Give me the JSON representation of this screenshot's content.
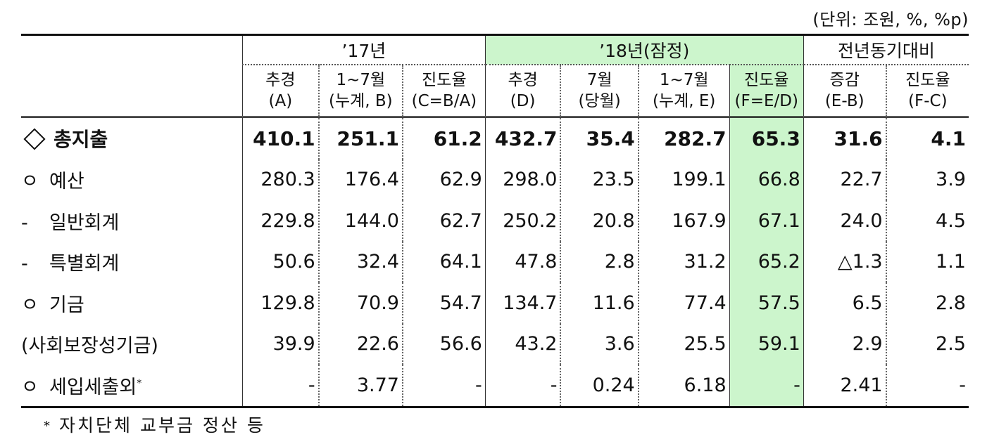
{
  "unit_note": "(단위: 조원, %, %p)",
  "header": {
    "groups": {
      "y17": "’17년",
      "y18": "’18년(잠정)",
      "yoy": "전년동기대비"
    },
    "columns": [
      {
        "line1": "추경",
        "line2": "(A)"
      },
      {
        "line1": "1~7월",
        "line2": "(누계, B)"
      },
      {
        "line1": "진도율",
        "line2": "(C=B/A)"
      },
      {
        "line1": "추경",
        "line2": "(D)"
      },
      {
        "line1": "7월",
        "line2": "(당월)"
      },
      {
        "line1": "1~7월",
        "line2": "(누계, E)"
      },
      {
        "line1": "진도율",
        "line2": "(F=E/D)"
      },
      {
        "line1": "증감",
        "line2": "(E-B)"
      },
      {
        "line1": "진도율",
        "line2": "(F-C)"
      }
    ]
  },
  "rows": [
    {
      "label": "총지출",
      "values": [
        "410.1",
        "251.1",
        "61.2",
        "432.7",
        "35.4",
        "282.7",
        "65.3",
        "31.6",
        "4.1"
      ]
    },
    {
      "marker": "ㅇ",
      "label": "예산",
      "values": [
        "280.3",
        "176.4",
        "62.9",
        "298.0",
        "23.5",
        "199.1",
        "66.8",
        "22.7",
        "3.9"
      ]
    },
    {
      "marker": "-",
      "label": "일반회계",
      "values": [
        "229.8",
        "144.0",
        "62.7",
        "250.2",
        "20.8",
        "167.9",
        "67.1",
        "24.0",
        "4.5"
      ]
    },
    {
      "marker": "-",
      "label": "특별회계",
      "values": [
        "50.6",
        "32.4",
        "64.1",
        "47.8",
        "2.8",
        "31.2",
        "65.2",
        "△1.3",
        "1.1"
      ]
    },
    {
      "marker": "ㅇ",
      "label": "기금",
      "values": [
        "129.8",
        "70.9",
        "54.7",
        "134.7",
        "11.6",
        "77.4",
        "57.5",
        "6.5",
        "2.8"
      ]
    },
    {
      "label": "(사회보장성기금)",
      "values": [
        "39.9",
        "22.6",
        "56.6",
        "43.2",
        "3.6",
        "25.5",
        "59.1",
        "2.9",
        "2.5"
      ]
    },
    {
      "marker": "ㅇ",
      "label": "세입세출외",
      "label_sup": "*",
      "values": [
        "-",
        "3.77",
        "-",
        "-",
        "0.24",
        "6.18",
        "-",
        "2.41",
        "-"
      ]
    }
  ],
  "footnote": {
    "mark": "*",
    "text": "자치단체 교부금 정산 등"
  },
  "colors": {
    "highlight": "#ccf5cc",
    "rule": "#111111"
  }
}
